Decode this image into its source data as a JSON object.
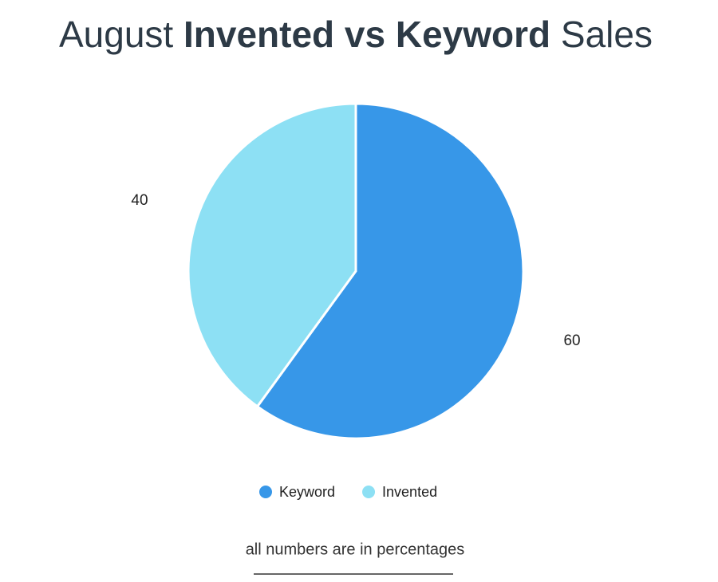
{
  "chart_data": {
    "type": "pie",
    "title": {
      "prefix": "August",
      "emphasis": "Invented vs Keyword",
      "suffix": "Sales"
    },
    "categories": [
      "Keyword",
      "Invented"
    ],
    "values": [
      60,
      40
    ],
    "colors": [
      "#3797e8",
      "#8de0f4"
    ],
    "legend": "bottom",
    "footnote": "all numbers are in percentages"
  }
}
